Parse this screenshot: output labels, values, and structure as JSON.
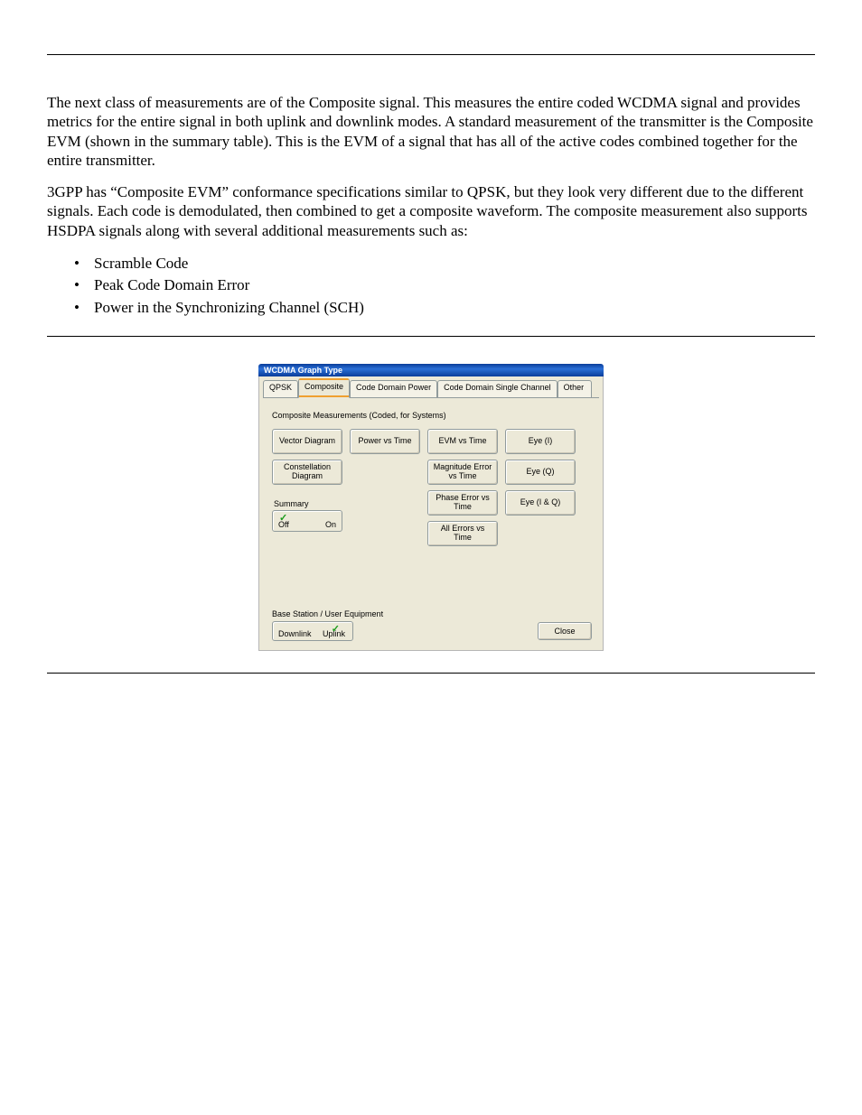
{
  "para1": "The next class of measurements are of the Composite signal. This measures the entire coded WCDMA signal and provides metrics for the entire signal in both uplink and downlink modes. A standard measurement of the transmitter is the Composite EVM (shown in the summary table). This is the EVM of a signal that has all of the active codes combined together for the entire transmitter.",
  "para2": "3GPP has “Composite EVM” conformance specifications similar to QPSK, but they look very different due to the different signals. Each code is demodulated, then combined to get a composite waveform. The composite measurement also supports HSDPA signals along with several additional measurements such as:",
  "bullets": [
    "Scramble Code",
    "Peak Code Domain Error",
    "Power in the Synchronizing Channel (SCH)"
  ],
  "dialog": {
    "title": "WCDMA Graph Type",
    "tabs": [
      "QPSK",
      "Composite",
      "Code Domain Power",
      "Code Domain Single Channel",
      "Other"
    ],
    "active_tab_index": 1,
    "section_label": "Composite Measurements    (Coded, for Systems)",
    "grid": [
      [
        "Vector Diagram",
        "Power vs Time",
        "EVM vs Time",
        "Eye (I)"
      ],
      [
        "Constellation Diagram",
        "",
        "Magnitude Error vs Time",
        "Eye (Q)"
      ],
      [
        "",
        "",
        "Phase Error vs Time",
        "Eye (I & Q)"
      ],
      [
        "",
        "",
        "All  Errors vs Time",
        ""
      ]
    ],
    "summary": {
      "label": "Summary",
      "off": "Off",
      "on": "On",
      "checked": "off"
    },
    "footer": {
      "label": "Base Station / User Equipment",
      "left": "Downlink",
      "right": "Uplink",
      "checked": "right",
      "close": "Close"
    }
  }
}
